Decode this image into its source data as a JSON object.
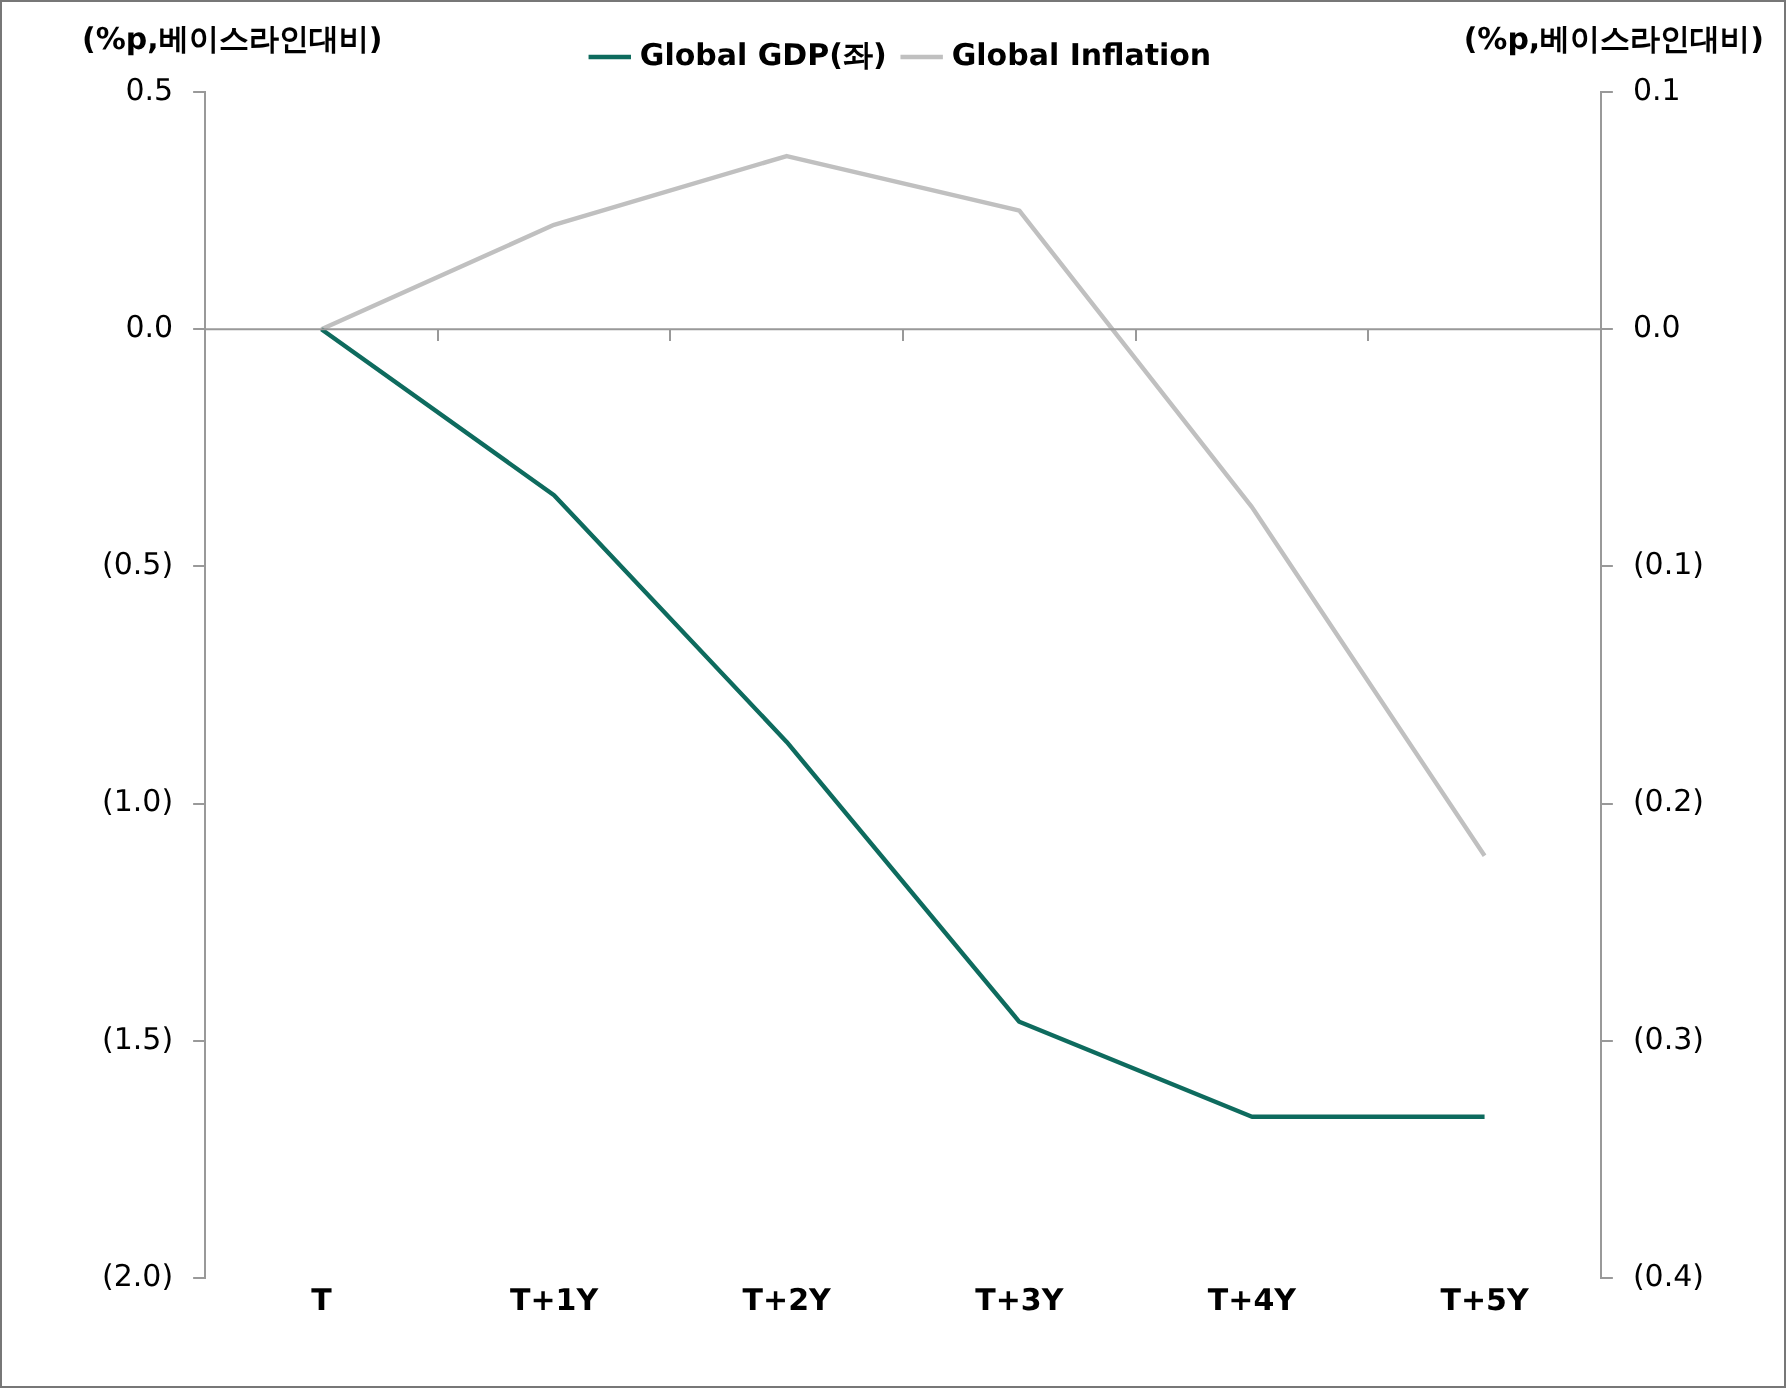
{
  "chart_data": {
    "type": "line",
    "ylabel": "(%p,베이스라인대비)",
    "y2label": "(%p,베이스라인대비)",
    "categories": [
      "T",
      "T+1Y",
      "T+2Y",
      "T+3Y",
      "T+4Y",
      "T+5Y"
    ],
    "series": [
      {
        "name": "Global GDP(좌)",
        "color": "#0e6b5e",
        "values": [
          0,
          -0.35,
          -0.87,
          -1.46,
          -1.66,
          -1.66
        ]
      },
      {
        "name": "Global Inflation",
        "color": "#c0c0c0",
        "axis": "y2",
        "values": [
          0,
          0.044,
          0.073,
          0.05,
          -0.075,
          -0.222
        ]
      }
    ],
    "ylim": [
      -2.0,
      0.5
    ],
    "yticks": [
      {
        "value": 0.5,
        "label": "0.5"
      },
      {
        "value": 0,
        "label": "0.0"
      },
      {
        "value": -0.5,
        "label": "(0.5)"
      },
      {
        "value": -1.0,
        "label": "(1.0)"
      },
      {
        "value": -1.5,
        "label": "(1.5)"
      },
      {
        "value": -2.0,
        "label": "(2.0)"
      }
    ],
    "y2lim": [
      -0.4,
      0.1
    ],
    "y2ticks": [
      {
        "value": 0.1,
        "label": "0.1"
      },
      {
        "value": 0,
        "label": "0.0"
      },
      {
        "value": -0.1,
        "label": "(0.1)"
      },
      {
        "value": -0.2,
        "label": "(0.2)"
      },
      {
        "value": -0.3,
        "label": "(0.3)"
      },
      {
        "value": -0.4,
        "label": "(0.4)"
      }
    ],
    "ref_lines": [
      {
        "axis": "y",
        "value": 0,
        "color": "#999999",
        "line_style": "solid"
      }
    ],
    "grid": false,
    "legend": "top",
    "marker": "none",
    "line_style": "solid"
  }
}
